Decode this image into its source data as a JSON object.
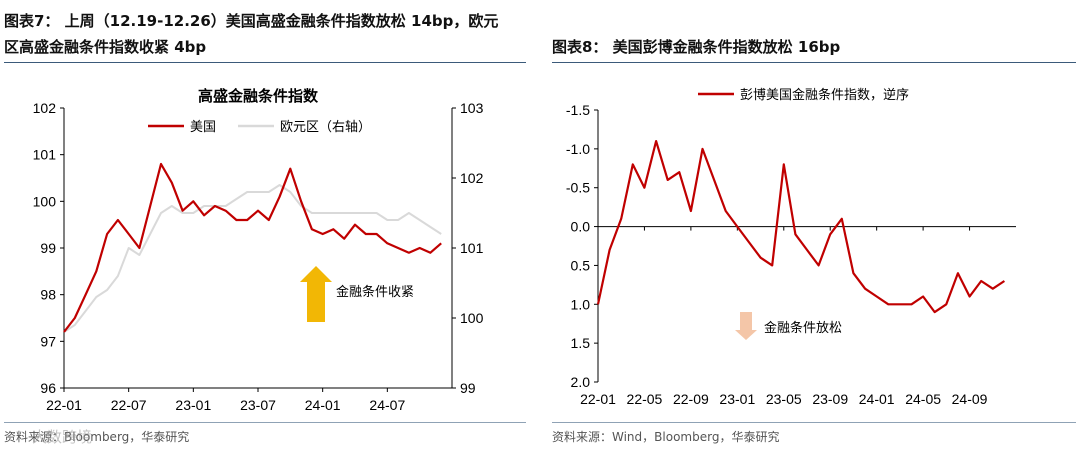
{
  "left": {
    "title_line1": "图表7：  上周（12.19-12.26）美国高盛金融条件指数放松 14bp，欧元",
    "title_line2": "区高盛金融条件指数收紧 4bp",
    "source": "资料来源：Bloomberg，华泰研究",
    "watermark": "大数跨境"
  },
  "right": {
    "title": "图表8：  美国彭博金融条件指数放松 16bp",
    "source": "资料来源：Wind，Bloomberg，华泰研究"
  },
  "chart_data": [
    {
      "type": "line",
      "title": "高盛金融条件指数",
      "x_ticks": [
        "22-01",
        "22-07",
        "23-01",
        "23-07",
        "24-01",
        "24-07"
      ],
      "y_left_ticks": [
        "96",
        "97",
        "98",
        "99",
        "100",
        "101",
        "102"
      ],
      "y_right_ticks": [
        "99",
        "100",
        "101",
        "102",
        "103"
      ],
      "ylim": [
        96,
        102
      ],
      "y2lim": [
        99,
        103
      ],
      "legend_position": "top",
      "annotation": "金融条件收紧",
      "arrow_color": "#f2b705",
      "series": [
        {
          "name": "美国",
          "axis": "left",
          "color": "#c00000",
          "x": [
            "2022-01",
            "2022-02",
            "2022-03",
            "2022-04",
            "2022-05",
            "2022-06",
            "2022-07",
            "2022-08",
            "2022-09",
            "2022-10",
            "2022-11",
            "2022-12",
            "2023-01",
            "2023-02",
            "2023-03",
            "2023-04",
            "2023-05",
            "2023-06",
            "2023-07",
            "2023-08",
            "2023-09",
            "2023-10",
            "2023-11",
            "2023-12",
            "2024-01",
            "2024-02",
            "2024-03",
            "2024-04",
            "2024-05",
            "2024-06",
            "2024-07",
            "2024-08",
            "2024-09",
            "2024-10",
            "2024-11",
            "2024-12"
          ],
          "values": [
            97.2,
            97.5,
            98.0,
            98.5,
            99.3,
            99.6,
            99.3,
            99.0,
            99.9,
            100.8,
            100.4,
            99.8,
            100.0,
            99.7,
            99.9,
            99.8,
            99.6,
            99.6,
            99.8,
            99.6,
            100.1,
            100.7,
            100.0,
            99.4,
            99.3,
            99.4,
            99.2,
            99.5,
            99.3,
            99.3,
            99.1,
            99.0,
            98.9,
            99.0,
            98.9,
            99.1
          ]
        },
        {
          "name": "欧元区（右轴）",
          "axis": "right",
          "color": "#d9d9d9",
          "x": [
            "2022-01",
            "2022-02",
            "2022-03",
            "2022-04",
            "2022-05",
            "2022-06",
            "2022-07",
            "2022-08",
            "2022-09",
            "2022-10",
            "2022-11",
            "2022-12",
            "2023-01",
            "2023-02",
            "2023-03",
            "2023-04",
            "2023-05",
            "2023-06",
            "2023-07",
            "2023-08",
            "2023-09",
            "2023-10",
            "2023-11",
            "2023-12",
            "2024-01",
            "2024-02",
            "2024-03",
            "2024-04",
            "2024-05",
            "2024-06",
            "2024-07",
            "2024-08",
            "2024-09",
            "2024-10",
            "2024-11",
            "2024-12"
          ],
          "values": [
            99.8,
            99.9,
            100.1,
            100.3,
            100.4,
            100.6,
            101.0,
            100.9,
            101.2,
            101.5,
            101.6,
            101.5,
            101.5,
            101.6,
            101.6,
            101.6,
            101.7,
            101.8,
            101.8,
            101.8,
            101.9,
            101.8,
            101.6,
            101.5,
            101.5,
            101.5,
            101.5,
            101.5,
            101.5,
            101.5,
            101.4,
            101.4,
            101.5,
            101.4,
            101.3,
            101.2
          ]
        }
      ]
    },
    {
      "type": "line",
      "title": "",
      "x_ticks": [
        "22-01",
        "22-05",
        "22-09",
        "23-01",
        "23-05",
        "23-09",
        "24-01",
        "24-05",
        "24-09"
      ],
      "y_ticks": [
        "-1.5",
        "-1.0",
        "-0.5",
        "0.0",
        "0.5",
        "1.0",
        "1.5",
        "2.0"
      ],
      "ylim": [
        -1.5,
        2.0
      ],
      "y_inverted": true,
      "legend_position": "top",
      "annotation": "金融条件放松",
      "arrow_color": "#f4c6a8",
      "series": [
        {
          "name": "彭博美国金融条件指数，逆序",
          "color": "#c00000",
          "x": [
            "2022-01",
            "2022-02",
            "2022-03",
            "2022-04",
            "2022-05",
            "2022-06",
            "2022-07",
            "2022-08",
            "2022-09",
            "2022-10",
            "2022-11",
            "2022-12",
            "2023-01",
            "2023-02",
            "2023-03",
            "2023-04",
            "2023-05",
            "2023-06",
            "2023-07",
            "2023-08",
            "2023-09",
            "2023-10",
            "2023-11",
            "2023-12",
            "2024-01",
            "2024-02",
            "2024-03",
            "2024-04",
            "2024-05",
            "2024-06",
            "2024-07",
            "2024-08",
            "2024-09",
            "2024-10",
            "2024-11",
            "2024-12"
          ],
          "values": [
            1.0,
            0.3,
            -0.1,
            -0.8,
            -0.5,
            -1.1,
            -0.6,
            -0.7,
            -0.2,
            -1.0,
            -0.6,
            -0.2,
            0.0,
            0.2,
            0.4,
            0.5,
            -0.8,
            0.1,
            0.3,
            0.5,
            0.1,
            -0.1,
            0.6,
            0.8,
            0.9,
            1.0,
            1.0,
            1.0,
            0.9,
            1.1,
            1.0,
            0.6,
            0.9,
            0.7,
            0.8,
            0.7
          ]
        }
      ]
    }
  ]
}
